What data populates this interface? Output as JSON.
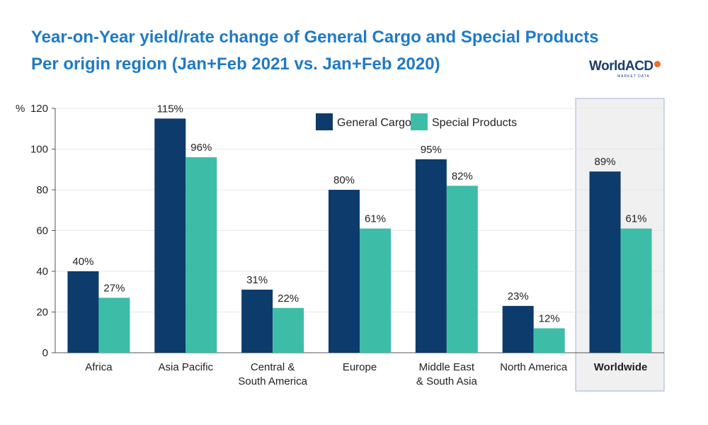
{
  "title_line1": "Year-on-Year yield/rate change of General Cargo and Special Products",
  "title_line2": "Per origin region (Jan+Feb 2021 vs. Jan+Feb 2020)",
  "logo": {
    "name": "WorldACD",
    "tagline": "MARKET DATA"
  },
  "colors": {
    "general_cargo": "#0d3b6b",
    "special_products": "#3dbda8",
    "title": "#1f7ac7",
    "highlight_bg": "#f0f0f0",
    "highlight_border": "#a9bde0"
  },
  "chart_data": {
    "type": "bar",
    "ylabel": "%",
    "ylim": [
      0,
      120
    ],
    "yticks": [
      0,
      20,
      40,
      60,
      80,
      100,
      120
    ],
    "categories": [
      [
        "Africa"
      ],
      [
        "Asia Pacific"
      ],
      [
        "Central &",
        "South America"
      ],
      [
        "Europe"
      ],
      [
        "Middle East",
        "& South Asia"
      ],
      [
        "North America"
      ],
      [
        "Worldwide"
      ]
    ],
    "highlight_category": "Worldwide",
    "legend_position": "top-center",
    "series": [
      {
        "name": "General Cargo",
        "values": [
          40,
          115,
          31,
          80,
          95,
          23,
          89
        ],
        "labels": [
          "40%",
          "115%",
          "31%",
          "80%",
          "95%",
          "23%",
          "89%"
        ]
      },
      {
        "name": "Special Products",
        "values": [
          27,
          96,
          22,
          61,
          82,
          12,
          61
        ],
        "labels": [
          "27%",
          "96%",
          "22%",
          "61%",
          "82%",
          "12%",
          "61%"
        ]
      }
    ]
  }
}
